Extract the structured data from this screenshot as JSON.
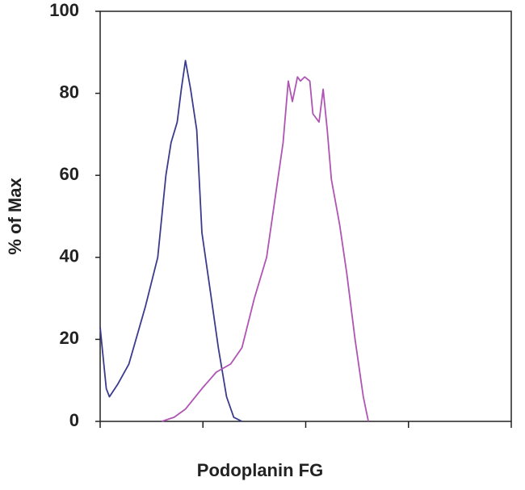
{
  "chart_data": {
    "type": "line",
    "ylabel": "% of Max",
    "xlabel": "Podoplanin FG",
    "ylim": [
      0,
      100
    ],
    "yticks": [
      0,
      20,
      40,
      60,
      80,
      100
    ],
    "xlim": [
      0,
      4
    ],
    "xticks": [
      0,
      1,
      2,
      3,
      4
    ],
    "series": [
      {
        "color": "#3b3b8e",
        "x": [
          0,
          0.02,
          0.06,
          0.09,
          0.17,
          0.28,
          0.44,
          0.56,
          0.64,
          0.69,
          0.75,
          0.79,
          0.83,
          0.88,
          0.94,
          0.99,
          1.07,
          1.15,
          1.23,
          1.3,
          1.38
        ],
        "values": [
          23,
          18,
          8,
          6,
          9,
          14,
          28,
          40,
          60,
          68,
          73,
          81,
          88,
          81,
          71,
          46,
          32,
          18,
          6,
          1,
          0
        ]
      },
      {
        "color": "#b054b4",
        "x": [
          0.6,
          0.72,
          0.83,
          0.99,
          1.13,
          1.27,
          1.38,
          1.5,
          1.62,
          1.7,
          1.78,
          1.83,
          1.87,
          1.92,
          1.95,
          1.99,
          2.04,
          2.07,
          2.13,
          2.17,
          2.21,
          2.25,
          2.33,
          2.4,
          2.48,
          2.56,
          2.61
        ],
        "values": [
          0,
          1,
          3,
          8,
          12,
          14,
          18,
          30,
          40,
          54,
          68,
          83,
          78,
          84,
          83,
          84,
          83,
          75,
          73,
          81,
          71,
          59,
          48,
          36,
          20,
          6,
          0
        ]
      }
    ]
  }
}
